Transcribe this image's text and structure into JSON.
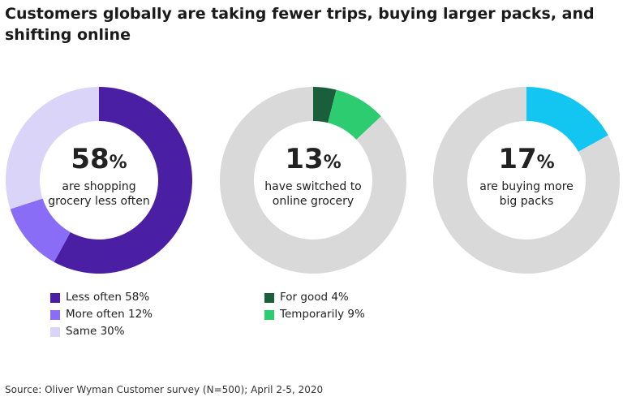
{
  "chart_data": [
    {
      "type": "pie",
      "donut": true,
      "headline": "58",
      "unit": "%",
      "caption": "are shopping grocery less often",
      "slices": [
        {
          "name": "Less often 58%",
          "value": 58,
          "color": "#4b1fa3"
        },
        {
          "name": "More often 12%",
          "value": 12,
          "color": "#8a6df6"
        },
        {
          "name": "Same 30%",
          "value": 30,
          "color": "#dad4f9"
        }
      ]
    },
    {
      "type": "pie",
      "donut": true,
      "headline": "13",
      "unit": "%",
      "caption": "have switched to online grocery",
      "slices": [
        {
          "name": "For good 4%",
          "value": 4,
          "color": "#1b5e3b"
        },
        {
          "name": "Temporarily 9%",
          "value": 9,
          "color": "#2ecc71"
        },
        {
          "name": "",
          "value": 87,
          "color": "#d9d9d9"
        }
      ]
    },
    {
      "type": "pie",
      "donut": true,
      "headline": "17",
      "unit": "%",
      "caption": "are buying more big packs",
      "slices": [
        {
          "name": "",
          "value": 17,
          "color": "#13c6f1"
        },
        {
          "name": "",
          "value": 83,
          "color": "#d9d9d9"
        }
      ]
    }
  ],
  "title": "Customers globally are taking fewer trips, buying larger packs, and shifting online",
  "source": "Source: Oliver Wyman Customer survey (N=500); April 2-5, 2020"
}
